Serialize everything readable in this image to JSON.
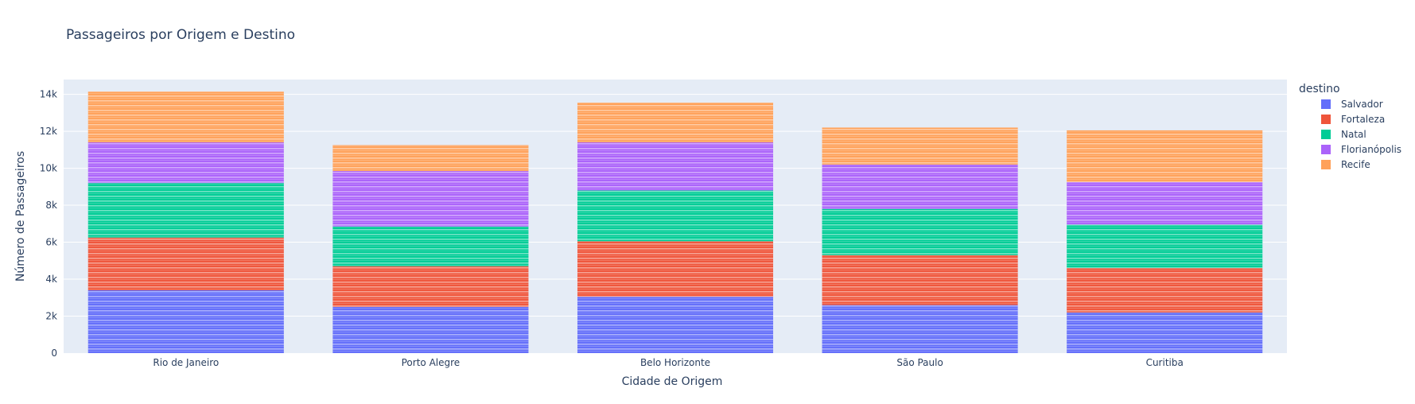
{
  "chart_data": {
    "type": "bar",
    "stacked": true,
    "title": "Passageiros por Origem e Destino",
    "xlabel": "Cidade de Origem",
    "ylabel": "Número de Passageiros",
    "categories": [
      "Rio de Janeiro",
      "Porto Alegre",
      "Belo Horizonte",
      "São Paulo",
      "Curitiba"
    ],
    "ylim": [
      0,
      14800
    ],
    "yticks": [
      0,
      2000,
      4000,
      6000,
      8000,
      10000,
      12000,
      14000
    ],
    "ytick_labels": [
      "0",
      "2k",
      "4k",
      "6k",
      "8k",
      "10k",
      "12k",
      "14k"
    ],
    "legend_title": "destino",
    "legend_position": "right",
    "grid": true,
    "series": [
      {
        "name": "Salvador",
        "color": "#636efa",
        "values": [
          3400,
          2500,
          3050,
          2600,
          2200
        ]
      },
      {
        "name": "Fortaleza",
        "color": "#ef553b",
        "values": [
          2850,
          2200,
          3000,
          2700,
          2400
        ]
      },
      {
        "name": "Natal",
        "color": "#00cc96",
        "values": [
          2950,
          2150,
          2750,
          2500,
          2350
        ]
      },
      {
        "name": "Florianópolis",
        "color": "#ab63fa",
        "values": [
          2200,
          3000,
          2600,
          2400,
          2300
        ]
      },
      {
        "name": "Recife",
        "color": "#ffa15a",
        "values": [
          2750,
          1400,
          2150,
          2000,
          2800
        ]
      }
    ]
  }
}
